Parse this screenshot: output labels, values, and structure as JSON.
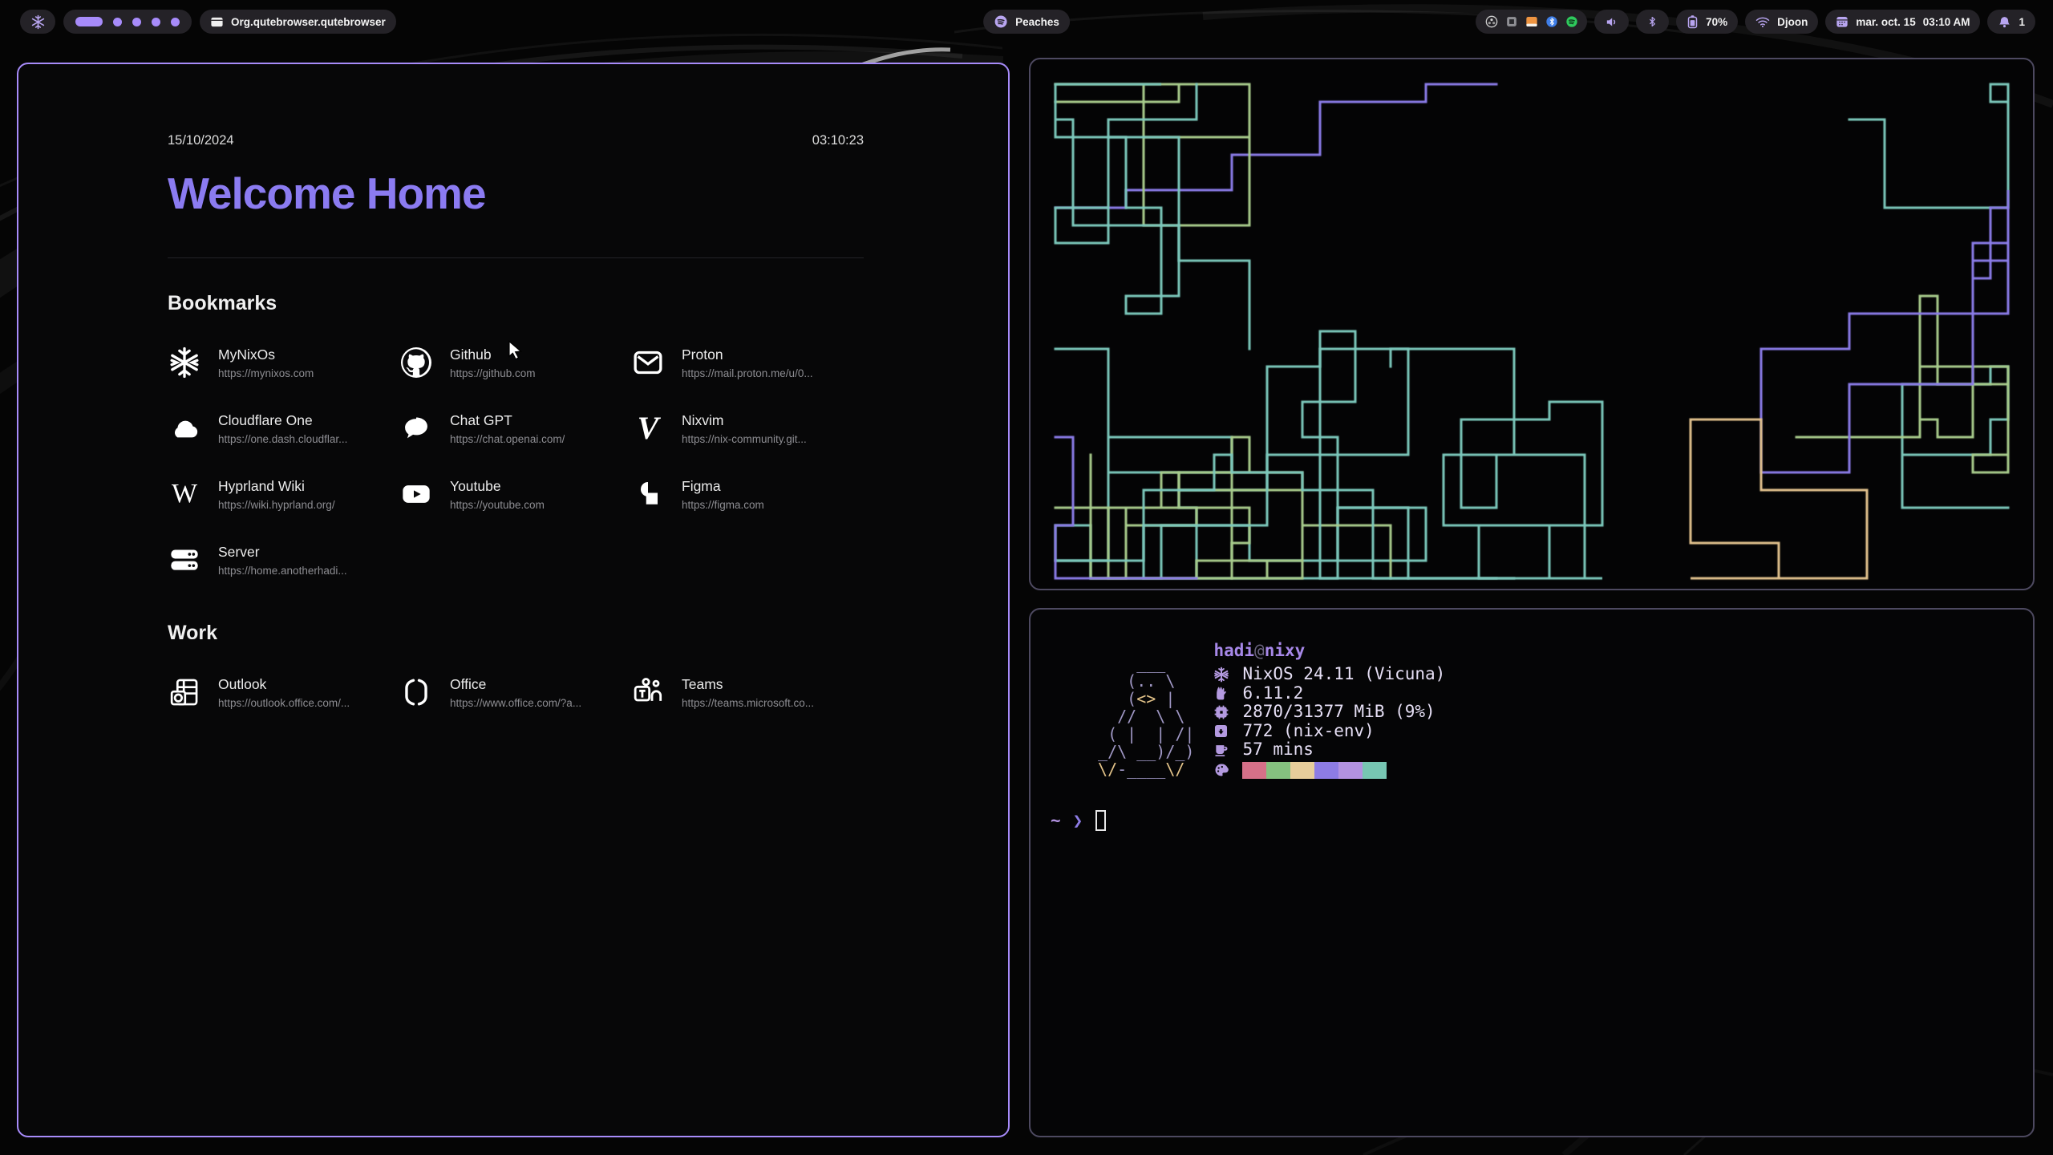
{
  "theme": {
    "accent": "#a78bfa",
    "title_purple": "#8b7bf1",
    "focused_border": "#a78bfa",
    "unfocused_border": "#4d4960",
    "bar_pill_bg": "#242227",
    "term_purple": "#b49ae0",
    "term_text": "#e6dff5"
  },
  "bar": {
    "window_title": "Org.qutebrowser.qutebrowser",
    "media": {
      "label": "Peaches"
    },
    "battery": {
      "percent": "70%"
    },
    "network": {
      "ssid": "Djoon"
    },
    "clock": {
      "date": "mar. oct. 15",
      "time": "03:10 AM"
    },
    "notifications": {
      "count": "1"
    },
    "workspaces": {
      "active_index": 0,
      "count": 5
    },
    "tray_icons": [
      "obs-icon",
      "app-square-icon",
      "folder-orange-icon",
      "bluetooth-icon",
      "spotify-icon"
    ]
  },
  "browser": {
    "date": "15/10/2024",
    "time": "03:10:23",
    "title": "Welcome Home",
    "sections": [
      {
        "heading": "Bookmarks",
        "links": [
          {
            "name": "MyNixOs",
            "url": "https://mynixos.com",
            "icon": "nixos-icon"
          },
          {
            "name": "Github",
            "url": "https://github.com",
            "icon": "github-icon"
          },
          {
            "name": "Proton",
            "url": "https://mail.proton.me/u/0...",
            "icon": "mail-icon"
          },
          {
            "name": "Cloudflare One",
            "url": "https://one.dash.cloudflar...",
            "icon": "cloud-icon"
          },
          {
            "name": "Chat GPT",
            "url": "https://chat.openai.com/",
            "icon": "chat-bubble-icon"
          },
          {
            "name": "Nixvim",
            "url": "https://nix-community.git...",
            "icon": "nixvim-icon"
          },
          {
            "name": "Hyprland Wiki",
            "url": "https://wiki.hyprland.org/",
            "icon": "wikipedia-icon"
          },
          {
            "name": "Youtube",
            "url": "https://youtube.com",
            "icon": "youtube-icon"
          },
          {
            "name": "Figma",
            "url": "https://figma.com",
            "icon": "figma-icon"
          },
          {
            "name": "Server",
            "url": "https://home.anotherhadi...",
            "icon": "server-icon"
          }
        ]
      },
      {
        "heading": "Work",
        "links": [
          {
            "name": "Outlook",
            "url": "https://outlook.office.com/...",
            "icon": "outlook-icon"
          },
          {
            "name": "Office",
            "url": "https://www.office.com/?a...",
            "icon": "office-icon"
          },
          {
            "name": "Teams",
            "url": "https://teams.microsoft.co...",
            "icon": "teams-icon"
          }
        ]
      }
    ]
  },
  "pipes": {
    "seed": 48,
    "pipe_count": 17,
    "colors": [
      "#7cc8bc",
      "#8b7ce8",
      "#a8cc8c",
      "#e2c28e",
      "#e4e4e4",
      "#b79ae0",
      "#7cc8bc",
      "#7cc8bc",
      "#8b7ce8",
      "#7cc8bc"
    ]
  },
  "fetch": {
    "user": "hadi",
    "sep": "@",
    "host": "nixy",
    "ascii": [
      [
        {
          "t": "     ___",
          "c": "l"
        }
      ],
      [
        {
          "t": "    (.. \\",
          "c": "l"
        }
      ],
      [
        {
          "t": "    (",
          "c": "l"
        },
        {
          "t": "<>",
          "c": "t"
        },
        {
          "t": " |",
          "c": "l"
        }
      ],
      [
        {
          "t": "   //  \\ \\",
          "c": "l"
        }
      ],
      [
        {
          "t": "  ( |  | /|",
          "c": "l"
        }
      ],
      [
        {
          "t": " _/\\ __)/_)",
          "c": "l"
        }
      ],
      [
        {
          "t": " \\/",
          "c": "t"
        },
        {
          "t": "-____",
          "c": "l"
        },
        {
          "t": "\\/",
          "c": "t"
        }
      ]
    ],
    "rows": [
      {
        "icon": "nixos-icon",
        "text": "NixOS 24.11 (Vicuna)"
      },
      {
        "icon": "kernel-icon",
        "text": "6.11.2"
      },
      {
        "icon": "memory-icon",
        "text": "2870/31377 MiB (9%)"
      },
      {
        "icon": "packages-icon",
        "text": "772 (nix-env)"
      },
      {
        "icon": "uptime-icon",
        "text": "57 mins"
      }
    ],
    "palette": [
      "#d57088",
      "#85c17f",
      "#e7cd9b",
      "#8d7ce4",
      "#b292e0",
      "#77c6b2"
    ],
    "prompt": {
      "dir": "~",
      "chevron": "❯"
    }
  }
}
